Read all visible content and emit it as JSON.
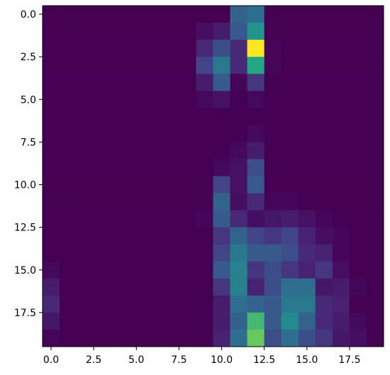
{
  "chart_data": {
    "type": "heatmap",
    "colormap": "viridis",
    "rows": 20,
    "cols": 20,
    "vmin": 0,
    "vmax": 1,
    "xlim": [
      -0.5,
      19.5
    ],
    "ylim": [
      19.5,
      -0.5
    ],
    "grid": false,
    "x_ticks": [
      {
        "value": 0.0,
        "label": "0.0"
      },
      {
        "value": 2.5,
        "label": "2.5"
      },
      {
        "value": 5.0,
        "label": "5.0"
      },
      {
        "value": 7.5,
        "label": "7.5"
      },
      {
        "value": 10.0,
        "label": "10.0"
      },
      {
        "value": 12.5,
        "label": "12.5"
      },
      {
        "value": 15.0,
        "label": "15.0"
      },
      {
        "value": 17.5,
        "label": "17.5"
      }
    ],
    "y_ticks": [
      {
        "value": 0.0,
        "label": "0.0"
      },
      {
        "value": 2.5,
        "label": "2.5"
      },
      {
        "value": 5.0,
        "label": "5.0"
      },
      {
        "value": 7.5,
        "label": "7.5"
      },
      {
        "value": 10.0,
        "label": "10.0"
      },
      {
        "value": 12.5,
        "label": "12.5"
      },
      {
        "value": 15.0,
        "label": "15.0"
      },
      {
        "value": 17.5,
        "label": "17.5"
      }
    ],
    "values": [
      [
        0,
        0,
        0,
        0,
        0,
        0,
        0,
        0,
        0,
        0,
        0,
        0.4,
        0.45,
        0,
        0,
        0,
        0,
        0,
        0,
        0
      ],
      [
        0,
        0,
        0,
        0,
        0,
        0,
        0,
        0,
        0,
        0.05,
        0.1,
        0.35,
        0.65,
        0,
        0,
        0,
        0,
        0,
        0,
        0
      ],
      [
        0,
        0,
        0,
        0,
        0,
        0,
        0,
        0,
        0,
        0.15,
        0.3,
        0.15,
        1.0,
        0.02,
        0,
        0,
        0,
        0,
        0,
        0
      ],
      [
        0,
        0,
        0,
        0,
        0,
        0,
        0,
        0,
        0,
        0.25,
        0.5,
        0.15,
        0.75,
        0.02,
        0,
        0,
        0,
        0,
        0,
        0
      ],
      [
        0,
        0,
        0,
        0,
        0,
        0,
        0,
        0,
        0,
        0.1,
        0.35,
        0.02,
        0.2,
        0,
        0,
        0,
        0,
        0,
        0,
        0
      ],
      [
        0,
        0,
        0,
        0,
        0,
        0,
        0,
        0,
        0,
        0.03,
        0.06,
        0,
        0.03,
        0,
        0,
        0,
        0,
        0,
        0,
        0
      ],
      [
        0,
        0,
        0,
        0,
        0,
        0,
        0,
        0,
        0,
        0,
        0,
        0,
        0,
        0,
        0,
        0,
        0,
        0,
        0,
        0
      ],
      [
        0,
        0,
        0,
        0,
        0,
        0,
        0,
        0,
        0,
        0,
        0,
        0,
        0.03,
        0,
        0,
        0,
        0,
        0,
        0,
        0
      ],
      [
        0,
        0,
        0,
        0,
        0,
        0,
        0,
        0,
        0,
        0,
        0,
        0.03,
        0.1,
        0,
        0,
        0,
        0,
        0,
        0,
        0
      ],
      [
        0,
        0,
        0,
        0,
        0,
        0,
        0,
        0,
        0,
        0,
        0.03,
        0.06,
        0.3,
        0,
        0,
        0,
        0,
        0,
        0,
        0
      ],
      [
        0,
        0,
        0,
        0,
        0,
        0,
        0,
        0,
        0,
        0,
        0.25,
        0.06,
        0.35,
        0,
        0,
        0,
        0,
        0,
        0,
        0
      ],
      [
        0,
        0,
        0,
        0,
        0,
        0,
        0,
        0,
        0,
        0,
        0.4,
        0.05,
        0.15,
        0.02,
        0.02,
        0,
        0,
        0,
        0,
        0
      ],
      [
        0,
        0,
        0,
        0,
        0,
        0,
        0,
        0,
        0,
        0.02,
        0.35,
        0.15,
        0.05,
        0.08,
        0.1,
        0.06,
        0.02,
        0,
        0,
        0
      ],
      [
        0,
        0,
        0,
        0,
        0,
        0,
        0,
        0,
        0,
        0,
        0.2,
        0.4,
        0.25,
        0.2,
        0.25,
        0.12,
        0.05,
        0.02,
        0,
        0
      ],
      [
        0,
        0,
        0,
        0,
        0,
        0,
        0,
        0,
        0,
        0,
        0.25,
        0.5,
        0.35,
        0.35,
        0.3,
        0.15,
        0.12,
        0.02,
        0,
        0
      ],
      [
        0.03,
        0,
        0,
        0,
        0,
        0,
        0,
        0,
        0,
        0,
        0.35,
        0.55,
        0.2,
        0.3,
        0.2,
        0.12,
        0.2,
        0.05,
        0,
        0
      ],
      [
        0.1,
        0,
        0,
        0,
        0,
        0,
        0,
        0,
        0,
        0,
        0.2,
        0.55,
        0.12,
        0.3,
        0.45,
        0.45,
        0.08,
        0.1,
        0.02,
        0
      ],
      [
        0.15,
        0,
        0,
        0,
        0,
        0,
        0,
        0,
        0,
        0,
        0.1,
        0.45,
        0.4,
        0.35,
        0.5,
        0.5,
        0.15,
        0.12,
        0,
        0
      ],
      [
        0.08,
        0,
        0,
        0,
        0,
        0,
        0,
        0,
        0,
        0,
        0.1,
        0.4,
        0.8,
        0.35,
        0.6,
        0.4,
        0.15,
        0.1,
        0.03,
        0
      ],
      [
        0.02,
        0,
        0,
        0,
        0,
        0,
        0,
        0,
        0,
        0,
        0.12,
        0.45,
        0.85,
        0.3,
        0.45,
        0.3,
        0.2,
        0.08,
        0.05,
        0
      ]
    ]
  }
}
